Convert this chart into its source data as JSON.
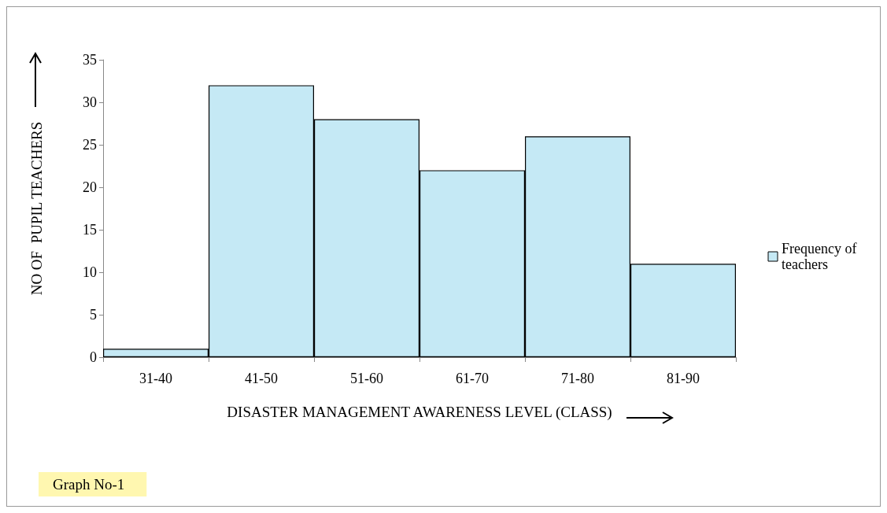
{
  "chart_data": {
    "type": "bar",
    "xlabel": "DISASTER MANAGEMENT AWARENESS LEVEL (CLASS)",
    "ylabel": "NO OF  PUPIL TEACHERS",
    "categories": [
      "31-40",
      "41-50",
      "51-60",
      "61-70",
      "71-80",
      "81-90"
    ],
    "series": [
      {
        "name": "Frequency of teachers",
        "color": "#c5e9f5",
        "values": [
          1,
          32,
          28,
          22,
          26,
          11
        ]
      }
    ],
    "ylim": [
      0,
      35
    ],
    "yticks": [
      0,
      5,
      10,
      15,
      20,
      25,
      30,
      35
    ],
    "grid": false,
    "legend": "right",
    "annotations": [
      "Graph No-1"
    ]
  }
}
